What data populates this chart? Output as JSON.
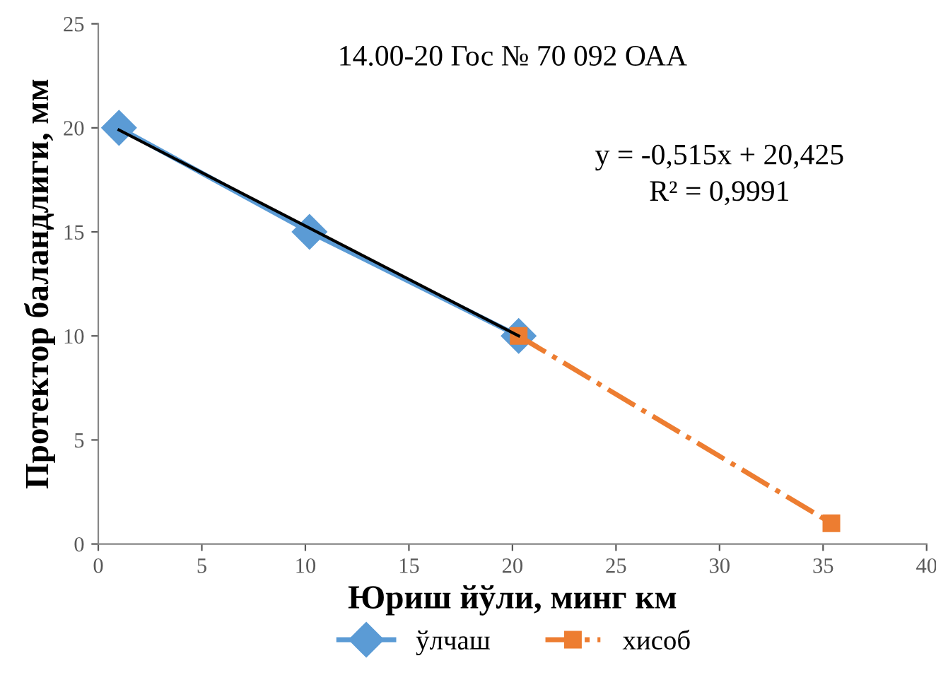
{
  "chart_data": {
    "type": "line",
    "title": "14.00-20 Гос № 70 092 ОАА",
    "xlabel": "Юриш йўли, минг км",
    "ylabel": "Протектор баландлиги, мм",
    "series": [
      {
        "name": "ўлчаш",
        "color": "#5b9bd5",
        "x": [
          1,
          10.2,
          20.3
        ],
        "values": [
          20,
          15,
          10
        ],
        "marker": "diamond",
        "line_style": "solid"
      },
      {
        "name": "хисоб",
        "color": "#ed7d31",
        "x": [
          20.3,
          35.4
        ],
        "values": [
          10,
          1
        ],
        "marker": "square",
        "line_style": "dashdot"
      },
      {
        "color": "#000000",
        "x": [
          1,
          20.3
        ],
        "values": [
          19.9,
          10
        ],
        "marker": "none",
        "line_style": "solid"
      }
    ],
    "annotations": [
      "y = -0,515x + 20,425",
      "R² = 0,9991"
    ],
    "xlim": [
      0,
      40
    ],
    "xticks": [
      0,
      5,
      10,
      15,
      20,
      25,
      30,
      35,
      40
    ],
    "ylim": [
      0,
      25
    ],
    "yticks": [
      0,
      5,
      10,
      15,
      20,
      25
    ],
    "grid": false,
    "legend": "bottom"
  }
}
